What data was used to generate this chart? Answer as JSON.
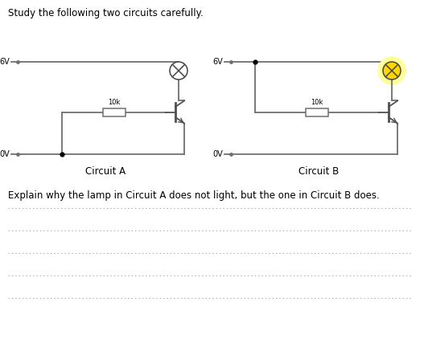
{
  "title": "Study the following two circuits carefully.",
  "explain_text": "Explain why the lamp in Circuit A does not light, but the one in Circuit B does.",
  "circuit_a_label": "Circuit A",
  "circuit_b_label": "Circuit B",
  "voltage_high": "6V",
  "voltage_low": "0V",
  "resistor_label": "10k",
  "bg_color": "#ffffff",
  "wire_color": "#707070",
  "lamp_off_color": "#ffffff",
  "lamp_on_color": "#FFD700",
  "lamp_on_glow": "#FFFF99",
  "transistor_color": "#505050",
  "dot_line_color": "#aaaaaa",
  "text_color": "#000000",
  "num_answer_lines": 5,
  "fig_w": 5.27,
  "fig_h": 4.47,
  "dpi": 100
}
